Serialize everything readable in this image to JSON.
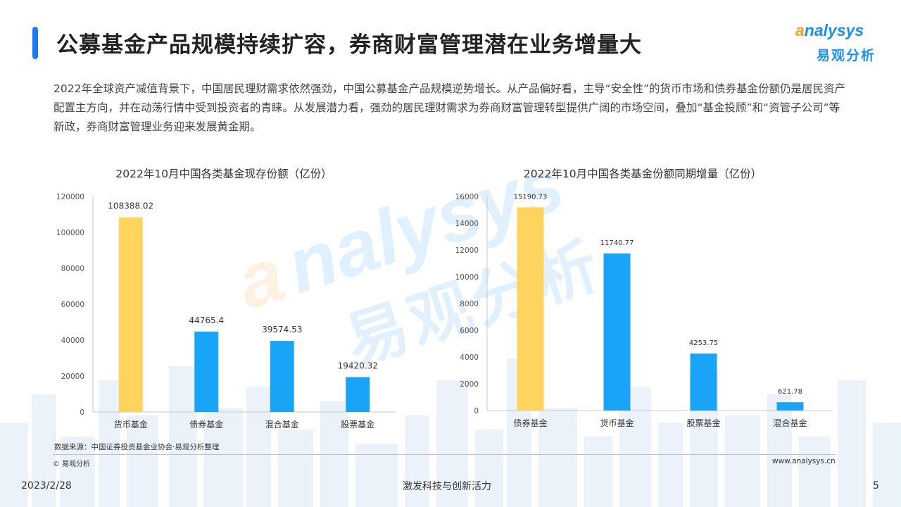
{
  "header": {
    "title": "公募基金产品规模持续扩容，券商财富管理潜在业务增量大"
  },
  "logo": {
    "wordmark_o": "a",
    "wordmark_rest": "nalysys",
    "cn_name": "易观分析"
  },
  "summary": {
    "text": "2022年全球资产减值背景下，中国居民理财需求依然强劲，中国公募基金产品规模逆势增长。从产品偏好看，主导“安全性”的货币市场和债券基金份额仍是居民资产配置主方向，并在动荡行情中受到投资者的青睐。从发展潜力看，强劲的居民理财需求为券商财富管理转型提供广阔的市场空间，叠加“基金投顾”和“资管子公司”等新政，券商财富管理业务迎来发展黄金期。"
  },
  "colors": {
    "accent_blue": "#1b7cf0",
    "bar_blue": "#1aa4f7",
    "bar_yellow": "#ffd45e",
    "logo_orange": "#ff9d1e"
  },
  "chart_data": [
    {
      "type": "bar",
      "title": "2022年10月中国各类基金现存份额（亿份）",
      "categories": [
        "货币基金",
        "债券基金",
        "混合基金",
        "股票基金"
      ],
      "values": [
        108388.02,
        44765.4,
        39574.53,
        19420.32
      ],
      "value_labels": [
        "108388.02",
        "44765.4",
        "39574.53",
        "19420.32"
      ],
      "bar_colors": [
        "#ffd45e",
        "#1aa4f7",
        "#1aa4f7",
        "#1aa4f7"
      ],
      "ylim": [
        0,
        120000
      ],
      "yticks": [
        0,
        20000,
        40000,
        60000,
        80000,
        100000,
        120000
      ],
      "grid": false,
      "xlabel": "",
      "ylabel": ""
    },
    {
      "type": "bar",
      "title": "2022年10月中国各类基金份额同期增量（亿份）",
      "categories": [
        "债券基金",
        "货币基金",
        "股票基金",
        "混合基金"
      ],
      "values": [
        15190.73,
        11740.77,
        4253.75,
        621.78
      ],
      "value_labels": [
        "15190.73",
        "11740.77",
        "4253.75",
        "621.78"
      ],
      "bar_colors": [
        "#ffd45e",
        "#1aa4f7",
        "#1aa4f7",
        "#1aa4f7"
      ],
      "ylim": [
        0,
        16000
      ],
      "yticks": [
        0,
        2000,
        4000,
        6000,
        8000,
        10000,
        12000,
        14000,
        16000
      ],
      "grid": false,
      "xlabel": "",
      "ylabel": ""
    }
  ],
  "source": {
    "note": "数据来源：中国证券投资基金业协会·易观分析整理",
    "copyright": "© 易观分析",
    "website": "www.analysys.cn"
  },
  "footer": {
    "date": "2023/2/28",
    "slogan": "激发科技与创新活力",
    "page_number": "5"
  }
}
